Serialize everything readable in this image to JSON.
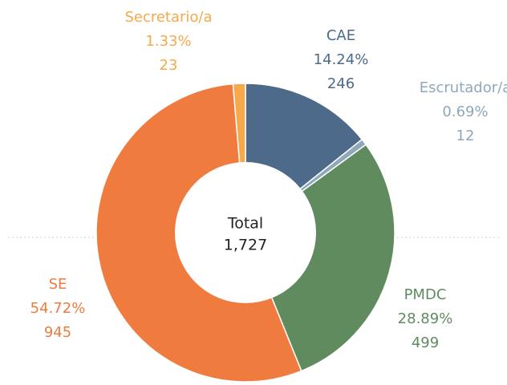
{
  "chart_data": {
    "type": "donut",
    "categories": [
      "CAE",
      "Escrutador/a",
      "PMDC",
      "SE",
      "Secretario/a"
    ],
    "values": [
      246,
      12,
      499,
      945,
      23
    ],
    "percent_labels": [
      "14.24%",
      "0.69%",
      "28.89%",
      "54.72%",
      "1.33%"
    ],
    "colors": [
      "#4e6a8a",
      "#8fa8bb",
      "#5f8b5f",
      "#f07b3f",
      "#f6a94b"
    ],
    "center_title": "Total",
    "center_value": "1,727"
  }
}
